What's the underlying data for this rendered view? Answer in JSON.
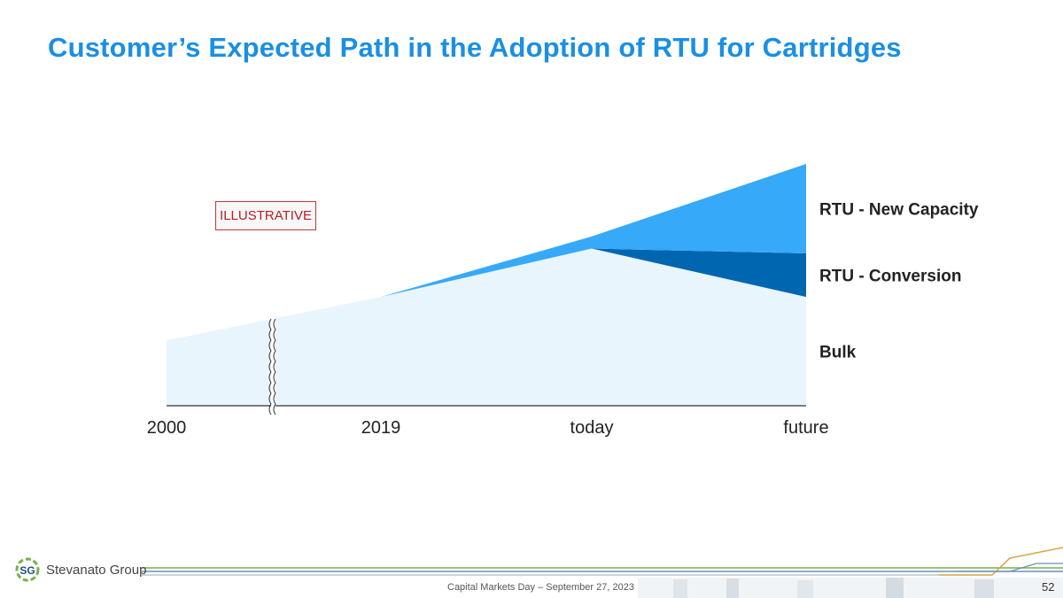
{
  "slide": {
    "title": "Customer’s Expected Path in the Adoption of RTU for Cartridges",
    "badge": "ILLUSTRATIVE",
    "footer": "Capital Markets Day – September  27, 2023",
    "page_number": "52",
    "logo": {
      "mark": "SG",
      "name": "Stevanato Group"
    }
  },
  "chart_data": {
    "type": "area",
    "stacked": true,
    "title": "",
    "xlabel": "",
    "ylabel": "",
    "categories": [
      "2000",
      "2019",
      "today",
      "future"
    ],
    "axis_break_between": [
      "2000",
      "2019"
    ],
    "ylim": [
      0,
      100
    ],
    "series": [
      {
        "name": "Bulk",
        "values": [
          27,
          45,
          65,
          45
        ],
        "color": "#e8f5fd"
      },
      {
        "name": "RTU - Conversion",
        "values": [
          0,
          0,
          0,
          18
        ],
        "color": "#0066b0"
      },
      {
        "name": "RTU - New Capacity",
        "values": [
          0,
          0,
          5,
          37
        ],
        "color": "#36a9f8"
      }
    ],
    "legend_placement": "right"
  }
}
